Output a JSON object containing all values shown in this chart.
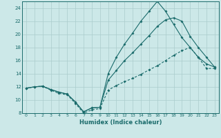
{
  "xlabel": "Humidex (Indice chaleur)",
  "bg_color": "#cce8e8",
  "grid_color": "#aacccc",
  "line_color": "#1a6b6b",
  "xlim": [
    -0.5,
    23.5
  ],
  "ylim": [
    8,
    25
  ],
  "xticks": [
    0,
    1,
    2,
    3,
    4,
    5,
    6,
    7,
    8,
    9,
    10,
    11,
    12,
    13,
    14,
    15,
    16,
    17,
    18,
    19,
    20,
    21,
    22,
    23
  ],
  "yticks": [
    8,
    10,
    12,
    14,
    16,
    18,
    20,
    22,
    24
  ],
  "series1_x": [
    0,
    1,
    2,
    3,
    4,
    5,
    6,
    7,
    8,
    9,
    10,
    11,
    12,
    13,
    14,
    15,
    16,
    17,
    18,
    19,
    20,
    21,
    22,
    23
  ],
  "series1_y": [
    11.8,
    12.0,
    12.1,
    11.6,
    11.2,
    10.9,
    9.7,
    8.2,
    8.8,
    8.9,
    14.0,
    16.5,
    18.5,
    20.2,
    22.0,
    23.5,
    25.0,
    23.5,
    21.5,
    19.5,
    18.0,
    16.5,
    15.5,
    15.0
  ],
  "series2_x": [
    0,
    1,
    2,
    3,
    4,
    5,
    6,
    7,
    8,
    9,
    10,
    11,
    12,
    13,
    14,
    15,
    16,
    17,
    18,
    19,
    20,
    21,
    22,
    23
  ],
  "series2_y": [
    11.8,
    12.0,
    12.1,
    11.6,
    11.2,
    10.9,
    9.7,
    8.2,
    8.8,
    8.9,
    13.0,
    14.5,
    16.0,
    17.2,
    18.5,
    19.8,
    21.2,
    22.2,
    22.5,
    22.0,
    19.7,
    18.0,
    16.5,
    15.0
  ],
  "series3_x": [
    0,
    1,
    2,
    3,
    4,
    5,
    6,
    7,
    8,
    9,
    10,
    11,
    12,
    13,
    14,
    15,
    16,
    17,
    18,
    19,
    20,
    21,
    22,
    23
  ],
  "series3_y": [
    11.8,
    12.0,
    12.1,
    11.5,
    11.0,
    10.8,
    9.5,
    8.0,
    8.5,
    8.7,
    11.5,
    12.2,
    12.8,
    13.3,
    13.9,
    14.6,
    15.2,
    16.0,
    16.8,
    17.5,
    18.0,
    16.5,
    14.8,
    14.8
  ]
}
